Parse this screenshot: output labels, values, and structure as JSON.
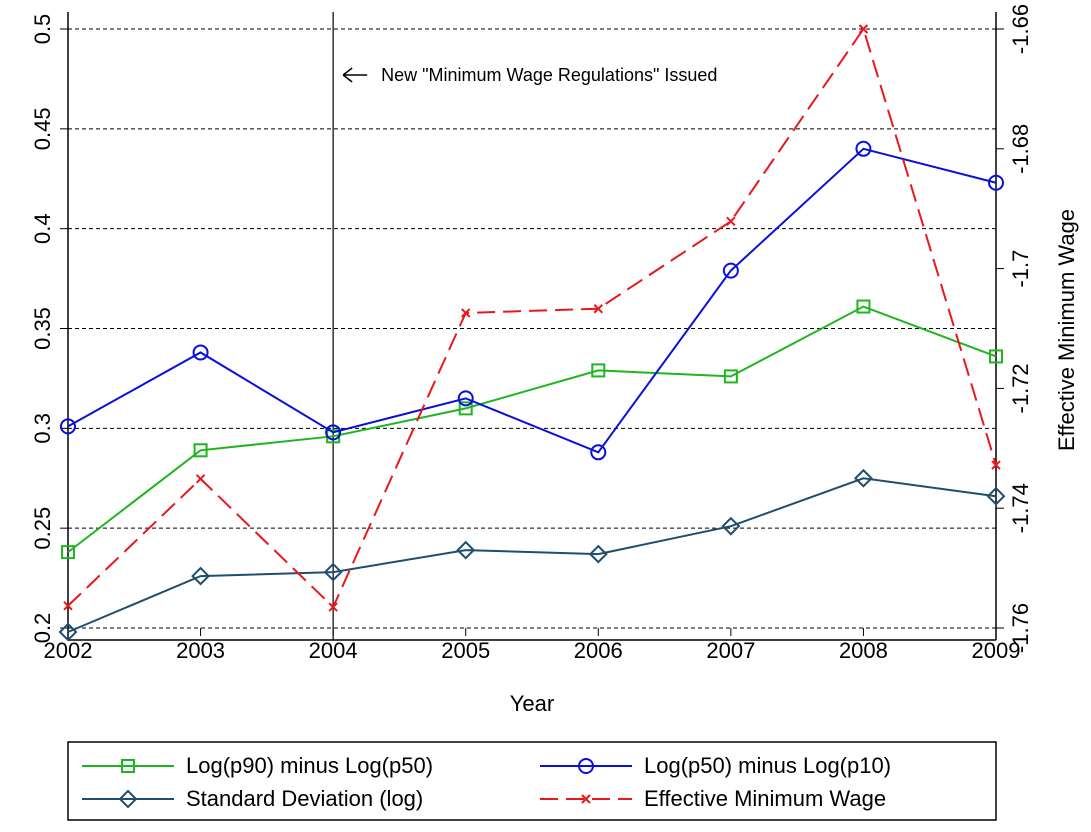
{
  "chart_data": {
    "type": "line",
    "x": [
      2002,
      2003,
      2004,
      2005,
      2006,
      2007,
      2008,
      2009
    ],
    "xlim": [
      2002,
      2009
    ],
    "xticks": [
      2002,
      2003,
      2004,
      2005,
      2006,
      2007,
      2008,
      2009
    ],
    "xlabel": "Year",
    "y2label": "Effective Minimum Wage",
    "ylim": [
      0.2,
      0.5
    ],
    "yticks": [
      0.2,
      0.25,
      0.3,
      0.35,
      0.4,
      0.45,
      0.5
    ],
    "y2lim": [
      -1.76,
      -1.66
    ],
    "y2ticks": [
      -1.76,
      -1.74,
      -1.72,
      -1.7,
      -1.68,
      -1.66
    ],
    "grid": true,
    "vline": 2004,
    "annotation": "New \"Minimum Wage Regulations\" Issued",
    "series": [
      {
        "name": "Log(p90) minus Log(p50)",
        "color": "#1fb51f",
        "marker": "square",
        "values": [
          0.238,
          0.289,
          0.296,
          0.31,
          0.329,
          0.326,
          0.361,
          0.336
        ]
      },
      {
        "name": "Log(p50) minus Log(p10)",
        "color": "#0a10d8",
        "marker": "circle",
        "values": [
          0.301,
          0.338,
          0.298,
          0.315,
          0.288,
          0.379,
          0.44,
          0.423
        ]
      },
      {
        "name": "Standard Deviation (log)",
        "color": "#1f4e6e",
        "marker": "diamond",
        "values": [
          0.198,
          0.226,
          0.228,
          0.239,
          0.237,
          0.251,
          0.275,
          0.266
        ]
      },
      {
        "name": "Effective Minimum Wage",
        "color": "#e8181c",
        "marker": "x",
        "dash": true,
        "axis": "y2",
        "values": [
          -1.7563,
          -1.7351,
          -1.7565,
          -1.7074,
          -1.7067,
          -1.6921,
          -1.66,
          -1.7328
        ]
      }
    ]
  }
}
